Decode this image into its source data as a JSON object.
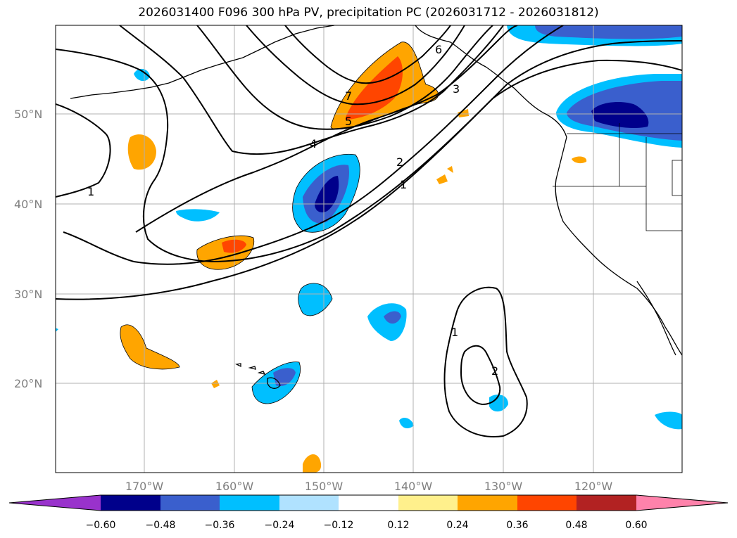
{
  "title": "2026031400 F096 300 hPa PV, precipitation PC (2026031712 - 2026031812)",
  "lat_labels": [
    "50°N",
    "40°N",
    "30°N",
    "20°N"
  ],
  "lon_labels": [
    "170°W",
    "160°W",
    "150°W",
    "140°W",
    "130°W",
    "120°W"
  ],
  "contour_labels": [
    "1",
    "2",
    "3",
    "4",
    "5",
    "6",
    "7",
    "1",
    "1",
    "2"
  ],
  "colorbar": {
    "ticks": [
      "−0.60",
      "−0.48",
      "−0.36",
      "−0.24",
      "−0.12",
      "0.12",
      "0.24",
      "0.36",
      "0.48",
      "0.60"
    ],
    "colors": [
      "#9932cc",
      "#00008b",
      "#3a5fcd",
      "#00bfff",
      "#b0e2ff",
      "#ffffff",
      "#fff08c",
      "#ffa500",
      "#ff4500",
      "#b22222",
      "#ff82ab"
    ]
  },
  "colors": {
    "coast": "#000000",
    "grid": "#b0b0b0",
    "contour": "#000000"
  }
}
